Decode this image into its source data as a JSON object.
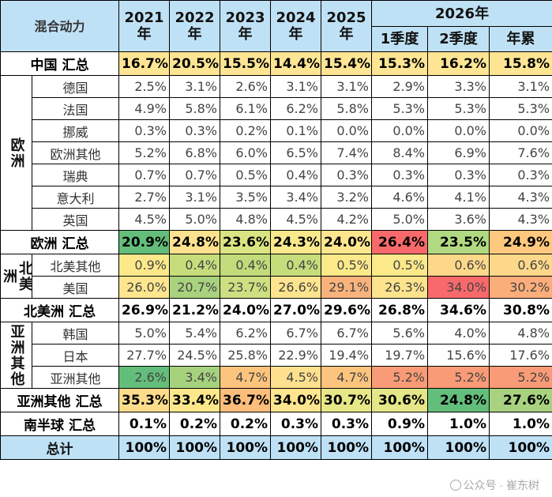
{
  "table": {
    "corner_label": "混合动力",
    "year_headers": [
      [
        "2021",
        "年"
      ],
      [
        "2022",
        "年"
      ],
      [
        "2023",
        "年"
      ],
      [
        "2024",
        "年"
      ],
      [
        "2025",
        "年"
      ]
    ],
    "group_header": "2026年",
    "sub_headers": [
      "1季度",
      "2季度",
      "年累"
    ],
    "rows": [
      {
        "type": "sum",
        "label": "中国 汇总",
        "values": [
          "16.7%",
          "20.5%",
          "15.5%",
          "14.4%",
          "15.4%",
          "15.3%",
          "16.2%",
          "15.8%"
        ],
        "colors": [
          "#fde594",
          "#fde594",
          "#fde594",
          "#fde594",
          "#fde594",
          "#fde594",
          "#fde594",
          "#fde594"
        ]
      },
      {
        "type": "item",
        "region_label": "欧洲",
        "region_rows": 7,
        "label": "德国",
        "values": [
          "2.5%",
          "3.1%",
          "2.6%",
          "3.1%",
          "3.1%",
          "2.9%",
          "3.3%",
          "3.1%"
        ]
      },
      {
        "type": "item",
        "label": "法国",
        "values": [
          "4.9%",
          "5.8%",
          "6.1%",
          "6.2%",
          "5.8%",
          "5.3%",
          "5.3%",
          "5.3%"
        ]
      },
      {
        "type": "item",
        "label": "挪威",
        "values": [
          "0.3%",
          "0.3%",
          "0.2%",
          "0.1%",
          "0.0%",
          "0.0%",
          "0.0%",
          "0.0%"
        ]
      },
      {
        "type": "item",
        "label": "欧洲其他",
        "values": [
          "5.2%",
          "6.8%",
          "6.0%",
          "6.5%",
          "7.4%",
          "8.4%",
          "6.9%",
          "7.6%"
        ]
      },
      {
        "type": "item",
        "label": "瑞典",
        "values": [
          "0.7%",
          "0.7%",
          "0.5%",
          "0.4%",
          "0.3%",
          "0.3%",
          "0.3%",
          "0.3%"
        ]
      },
      {
        "type": "item",
        "label": "意大利",
        "values": [
          "2.7%",
          "3.1%",
          "3.5%",
          "3.4%",
          "3.2%",
          "4.6%",
          "4.1%",
          "4.3%"
        ]
      },
      {
        "type": "item",
        "label": "英国",
        "values": [
          "4.5%",
          "5.0%",
          "4.8%",
          "4.5%",
          "4.2%",
          "5.0%",
          "3.6%",
          "4.3%"
        ]
      },
      {
        "type": "sum",
        "label": "欧洲 汇总",
        "values": [
          "20.9%",
          "24.8%",
          "23.6%",
          "24.3%",
          "24.0%",
          "26.4%",
          "23.5%",
          "24.9%"
        ],
        "colors": [
          "#63be7b",
          "#fee18e",
          "#dae482",
          "#f9e88c",
          "#fee68f",
          "#f8696b",
          "#b1d981",
          "#fec97e"
        ]
      },
      {
        "type": "item",
        "region_label": "北美洲",
        "region_rows": 2,
        "label": "北美其他",
        "values": [
          "0.9%",
          "0.4%",
          "0.4%",
          "0.4%",
          "0.5%",
          "0.5%",
          "0.6%",
          "0.6%"
        ],
        "colors": [
          "#fde98a",
          "#c6dd7c",
          "#c2db7b",
          "#c6dd7c",
          "#fce98a",
          "#fce98a",
          "#fed88a",
          "#fed88a"
        ]
      },
      {
        "type": "item",
        "label": "美国",
        "values": [
          "26.0%",
          "20.7%",
          "23.7%",
          "26.6%",
          "29.1%",
          "26.3%",
          "34.0%",
          "30.2%"
        ],
        "colors": [
          "#fee68f",
          "#a9d27f",
          "#cde081",
          "#fee48e",
          "#f8b37c",
          "#fee38d",
          "#f8696b",
          "#fbad7a"
        ]
      },
      {
        "type": "sum",
        "label": "北美洲 汇总",
        "values": [
          "26.9%",
          "21.2%",
          "24.0%",
          "27.0%",
          "29.6%",
          "26.8%",
          "34.6%",
          "30.8%"
        ]
      },
      {
        "type": "item",
        "region_label": "亚洲其他",
        "region_rows": 3,
        "label": "韩国",
        "values": [
          "5.0%",
          "5.4%",
          "6.2%",
          "6.7%",
          "6.7%",
          "5.6%",
          "4.0%",
          "4.8%"
        ]
      },
      {
        "type": "item",
        "label": "日本",
        "values": [
          "27.7%",
          "24.5%",
          "25.8%",
          "22.9%",
          "19.4%",
          "19.7%",
          "15.6%",
          "17.6%"
        ]
      },
      {
        "type": "item",
        "label": "亚洲其他",
        "values": [
          "2.6%",
          "3.4%",
          "4.7%",
          "4.5%",
          "4.7%",
          "5.2%",
          "5.2%",
          "5.2%"
        ],
        "colors": [
          "#63be7b",
          "#a6d27e",
          "#fdc47d",
          "#fee08e",
          "#fdc47d",
          "#f99b76",
          "#f99b76",
          "#f99b76"
        ]
      },
      {
        "type": "sum",
        "label": "亚洲其他 汇总",
        "values": [
          "35.3%",
          "33.4%",
          "36.7%",
          "34.0%",
          "30.7%",
          "30.6%",
          "24.8%",
          "27.6%"
        ],
        "colors": [
          "#fddd8c",
          "#fce88b",
          "#fdbd7c",
          "#fde48e",
          "#e7e788",
          "#e4e688",
          "#63be7b",
          "#a8d27f"
        ]
      },
      {
        "type": "sum",
        "label": "南半球 汇总",
        "values": [
          "0.1%",
          "0.2%",
          "0.2%",
          "0.3%",
          "0.3%",
          "0.9%",
          "1.0%",
          "1.0%"
        ]
      },
      {
        "type": "total",
        "label": "总计",
        "values": [
          "100%",
          "100%",
          "100%",
          "100%",
          "100%",
          "100%",
          "100%",
          "100%"
        ]
      }
    ]
  },
  "watermark": "公众号 · 崔东树"
}
